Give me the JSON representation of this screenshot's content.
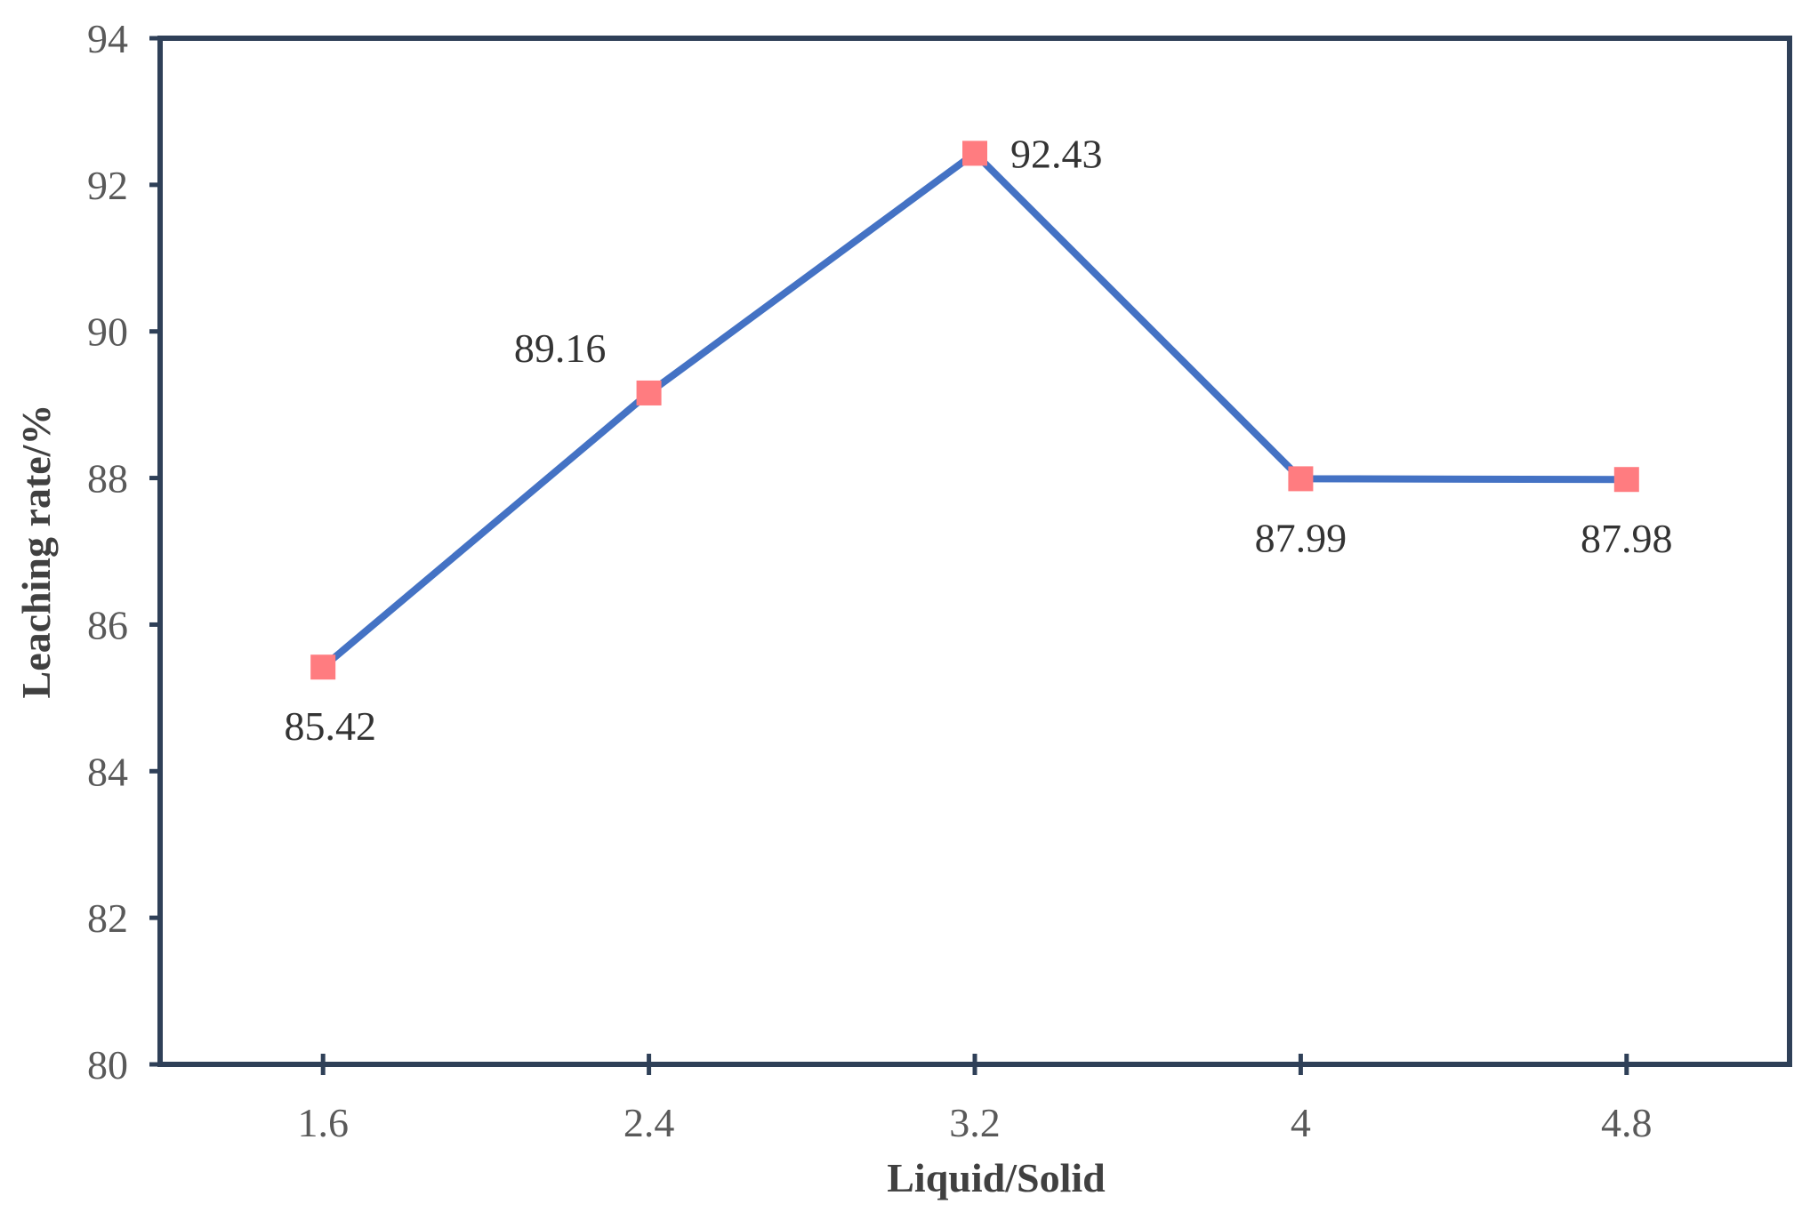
{
  "chart_data": {
    "type": "line",
    "title": "",
    "xlabel": "Liquid/Solid",
    "ylabel": "Leaching rate/%",
    "categories": [
      "1.6",
      "2.4",
      "3.2",
      "4",
      "4.8"
    ],
    "x": [
      1.6,
      2.4,
      3.2,
      4,
      4.8
    ],
    "y_ticks": [
      "80",
      "82",
      "84",
      "86",
      "88",
      "90",
      "92",
      "94"
    ],
    "ylim": [
      80,
      94
    ],
    "grid": false,
    "legend": "none",
    "series": [
      {
        "values": [
          85.42,
          89.16,
          92.43,
          87.99,
          87.98
        ],
        "data_labels": [
          "85.42",
          "89.16",
          "92.43",
          "87.99",
          "87.98"
        ],
        "line_color": "#4472C4",
        "marker": "square",
        "marker_color": "#FF7C80"
      }
    ],
    "colors": {
      "frame": "#2F4058",
      "line": "#4472C4",
      "marker": "#FF7C80",
      "tick_text": "#595959",
      "axis_title": "#404040"
    }
  }
}
